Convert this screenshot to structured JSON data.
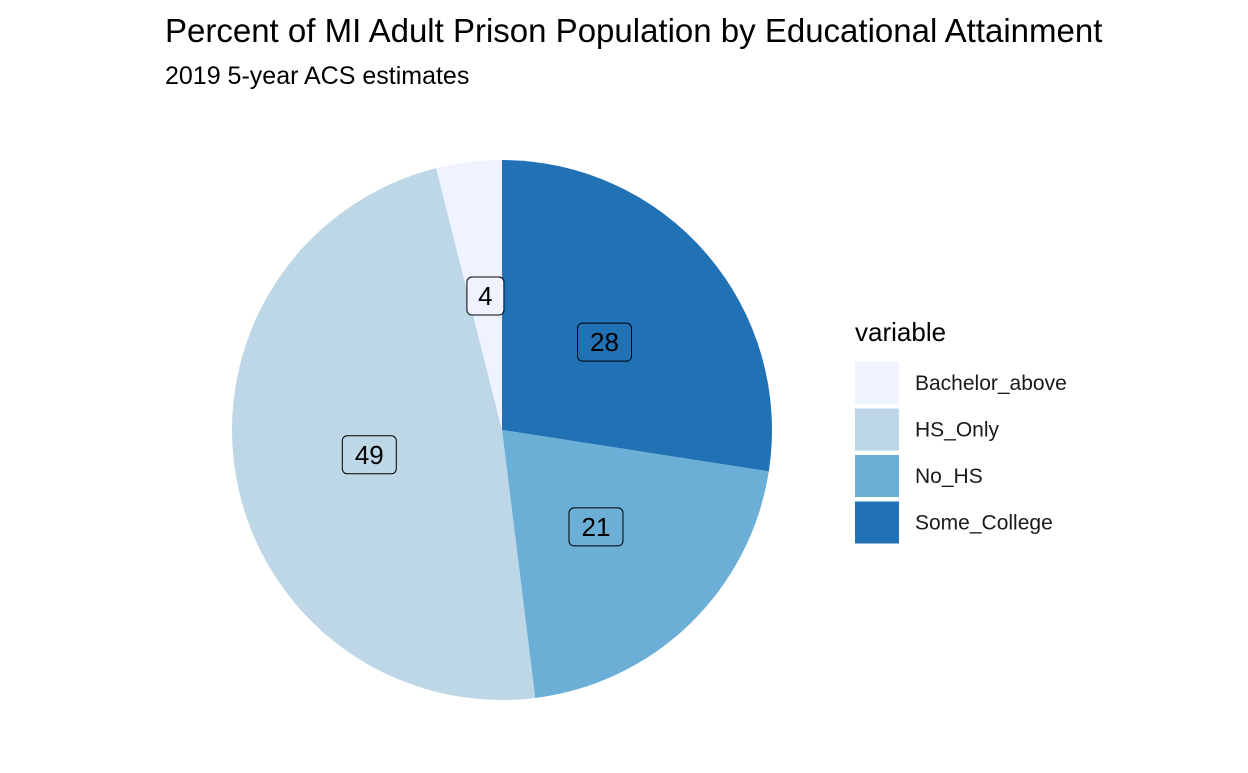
{
  "chart_data": {
    "type": "pie",
    "title": "Percent of MI Adult Prison Population by Educational Attainment",
    "subtitle": "2019 5-year ACS estimates",
    "legend_title": "variable",
    "legend_position": "right",
    "start": "12 o'clock",
    "direction": "clockwise",
    "series": [
      {
        "name": "Some_College",
        "value": 28,
        "label": "28",
        "color": "#2171b5"
      },
      {
        "name": "No_HS",
        "value": 21,
        "label": "21",
        "color": "#6baed6"
      },
      {
        "name": "HS_Only",
        "value": 49,
        "label": "49",
        "color": "#bdd7e7"
      },
      {
        "name": "Bachelor_above",
        "value": 4,
        "label": "4",
        "color": "#eff3ff"
      }
    ],
    "legend_order": [
      "Bachelor_above",
      "HS_Only",
      "No_HS",
      "Some_College"
    ]
  }
}
